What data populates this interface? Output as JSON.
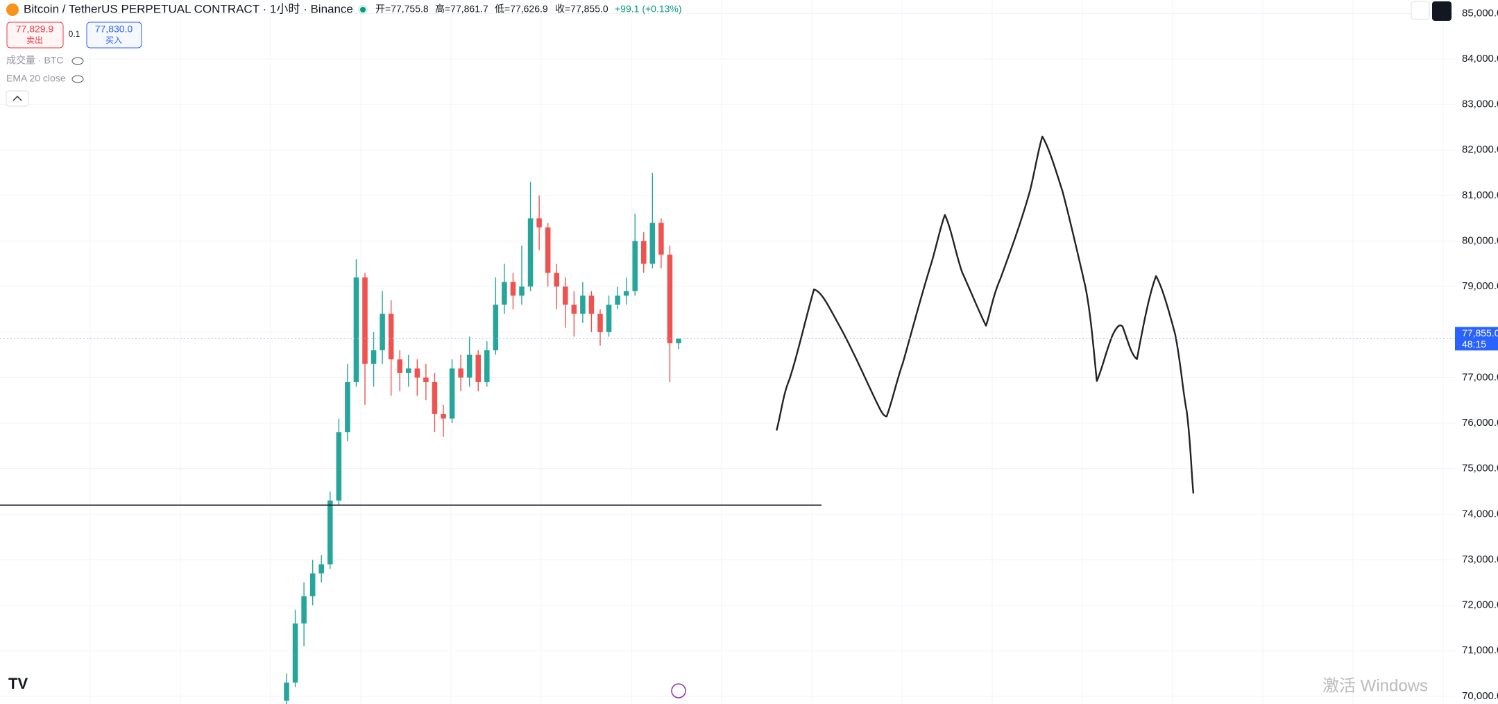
{
  "header": {
    "symbol": "Bitcoin / TetherUS PERPETUAL CONTRACT · 1小时 · Binance",
    "ohlc": [
      "开=77,755.8",
      "高=77,861.7",
      "低=77,626.9",
      "收=77,855.0"
    ],
    "change": "+99.1 (+0.13%)",
    "sell_price": "77,829.9",
    "sell_label": "卖出",
    "quantity": "0.1",
    "buy_price": "77,830.0",
    "buy_label": "买入",
    "indicators": [
      "成交量 · BTC",
      "EMA 20 close"
    ],
    "watermark": "激活 Windows"
  },
  "chart_data": {
    "type": "candlestick",
    "up_color": "#26a69a",
    "down_color": "#ef5350",
    "open": [
      69900,
      70300,
      71600,
      72200,
      72700,
      72900,
      74300,
      75800,
      76900,
      79200,
      77300,
      77600,
      78400,
      77400,
      77100,
      77200,
      77000,
      76900,
      76200,
      76100,
      77200,
      77000,
      77500,
      76900,
      77600,
      78600,
      79100,
      78800,
      79000,
      80500,
      80300,
      79300,
      79000,
      78600,
      78400,
      78800,
      78400,
      78000,
      78600,
      78800,
      78900,
      80000,
      79500,
      80400,
      79700,
      77755.8
    ],
    "high": [
      70500,
      71900,
      72500,
      73000,
      73100,
      74500,
      76100,
      77300,
      79600,
      79300,
      78000,
      78900,
      78700,
      77600,
      77500,
      77400,
      77300,
      77100,
      76400,
      77400,
      77500,
      77900,
      77600,
      77800,
      79200,
      79500,
      79300,
      79900,
      81300,
      81000,
      80400,
      79500,
      79200,
      78900,
      79100,
      78900,
      78500,
      78800,
      79000,
      79200,
      80600,
      80200,
      81500,
      80500,
      79900,
      77861.7
    ],
    "low": [
      69700,
      70200,
      71100,
      72000,
      72500,
      72800,
      74200,
      75600,
      76800,
      76400,
      76800,
      77300,
      76600,
      76700,
      76800,
      76600,
      76500,
      75800,
      75700,
      76000,
      76700,
      76800,
      76700,
      76800,
      77500,
      78400,
      78500,
      78600,
      78900,
      79800,
      79000,
      78500,
      78100,
      77900,
      78200,
      78000,
      77700,
      77900,
      78500,
      78600,
      78800,
      79300,
      79400,
      79400,
      76900,
      77626.9
    ],
    "close": [
      70300,
      71600,
      72200,
      72700,
      72900,
      74300,
      75800,
      76900,
      79200,
      77300,
      77600,
      78400,
      77400,
      77100,
      77200,
      77000,
      76900,
      76200,
      76100,
      77200,
      77000,
      77500,
      76900,
      77600,
      78600,
      79100,
      78800,
      79000,
      80500,
      80300,
      79300,
      79000,
      78600,
      78400,
      78800,
      78400,
      78000,
      78600,
      78800,
      78900,
      80000,
      79500,
      80400,
      79700,
      77755.8,
      77855
    ],
    "ylim": [
      69830,
      85295
    ],
    "yticks": [
      {
        "value": 85000,
        "label": "85,000.0"
      },
      {
        "value": 84000,
        "label": "84,000.0"
      },
      {
        "value": 83000,
        "label": "83,000.0"
      },
      {
        "value": 82000,
        "label": "82,000.0"
      },
      {
        "value": 81000,
        "label": "81,000.0"
      },
      {
        "value": 80000,
        "label": "80,000.0"
      },
      {
        "value": 79000,
        "label": "79,000.0"
      },
      {
        "value": 78000,
        "label": "78,000.0"
      },
      {
        "value": 77000,
        "label": "77,000.0"
      },
      {
        "value": 76000,
        "label": "76,000.0"
      },
      {
        "value": 75000,
        "label": "75,000.0"
      },
      {
        "value": 74000,
        "label": "74,000.0"
      },
      {
        "value": 73000,
        "label": "73,000.0"
      },
      {
        "value": 72000,
        "label": "72,000.0"
      },
      {
        "value": 71000,
        "label": "71,000.0"
      },
      {
        "value": 70000,
        "label": "70,000.0"
      }
    ],
    "grid": true,
    "last_price": {
      "value": 77855,
      "label": "77,855.0",
      "countdown": "48:15"
    },
    "horizontal_line": 74200
  }
}
